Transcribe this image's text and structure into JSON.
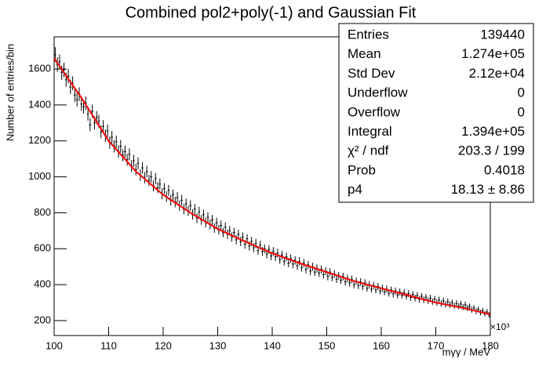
{
  "chart_data": {
    "type": "histogram",
    "title": "Combined pol2+poly(-1) and Gaussian Fit",
    "x_label": "mγγ / MeV",
    "x_multiplier": "×10³",
    "y_label": "Number of entries/bin",
    "color": "#000000",
    "bins": [
      100,
      100.4,
      100.8,
      101.2,
      101.6,
      102,
      102.4,
      102.8,
      103.2,
      103.6,
      104,
      104.4,
      104.8,
      105.2,
      105.6,
      106,
      106.4,
      106.8,
      107.2,
      107.6,
      108,
      108.4,
      108.8,
      109.2,
      109.6,
      110,
      110.4,
      110.8,
      111.2,
      111.6,
      112,
      112.4,
      112.8,
      113.2,
      113.6,
      114,
      114.4,
      114.8,
      115.2,
      115.6,
      116,
      116.4,
      116.8,
      117.2,
      117.6,
      118,
      118.4,
      118.8,
      119.2,
      119.6,
      120,
      120.4,
      120.8,
      121.2,
      121.6,
      122,
      122.4,
      122.8,
      123.2,
      123.6,
      124,
      124.4,
      124.8,
      125.2,
      125.6,
      126,
      126.4,
      126.8,
      127.2,
      127.6,
      128,
      128.4,
      128.8,
      129.2,
      129.6,
      130,
      130.4,
      130.8,
      131.2,
      131.6,
      132,
      132.4,
      132.8,
      133.2,
      133.6,
      134,
      134.4,
      134.8,
      135.2,
      135.6,
      136,
      136.4,
      136.8,
      137.2,
      137.6,
      138,
      138.4,
      138.8,
      139.2,
      139.6,
      140,
      140.4,
      140.8,
      141.2,
      141.6,
      142,
      142.4,
      142.8,
      143.2,
      143.6,
      144,
      144.4,
      144.8,
      145.2,
      145.6,
      146,
      146.4,
      146.8,
      147.2,
      147.6,
      148,
      148.4,
      148.8,
      149.2,
      149.6,
      150,
      150.4,
      150.8,
      151.2,
      151.6,
      152,
      152.4,
      152.8,
      153.2,
      153.6,
      154,
      154.4,
      154.8,
      155.2,
      155.6,
      156,
      156.4,
      156.8,
      157.2,
      157.6,
      158,
      158.4,
      158.8,
      159.2,
      159.6,
      160,
      160.4,
      160.8,
      161.2,
      161.6,
      162,
      162.4,
      162.8,
      163.2,
      163.6,
      164,
      164.4,
      164.8,
      165.2,
      165.6,
      166,
      166.4,
      166.8,
      167.2,
      167.6,
      168,
      168.4,
      168.8,
      169.2,
      169.6,
      170,
      170.4,
      170.8,
      171.2,
      171.6,
      172,
      172.4,
      172.8,
      173.2,
      173.6,
      174,
      174.4,
      174.8,
      175.2,
      175.6,
      176,
      176.4,
      176.8,
      177.2,
      177.6,
      178,
      178.4,
      178.8,
      179.2,
      179.6,
      180
    ],
    "values": [
      1680,
      1625,
      1640,
      1580,
      1595,
      1540,
      1560,
      1500,
      1520,
      1455,
      1430,
      1460,
      1405,
      1390,
      1410,
      1350,
      1290,
      1365,
      1300,
      1330,
      1310,
      1250,
      1280,
      1230,
      1255,
      1190,
      1220,
      1170,
      1195,
      1140,
      1170,
      1120,
      1140,
      1095,
      1125,
      1060,
      1090,
      1040,
      1075,
      1010,
      1050,
      995,
      1030,
      980,
      1000,
      950,
      990,
      940,
      960,
      905,
      935,
      890,
      925,
      870,
      900,
      860,
      885,
      840,
      870,
      820,
      850,
      810,
      840,
      790,
      820,
      770,
      805,
      760,
      790,
      745,
      775,
      735,
      760,
      715,
      745,
      705,
      730,
      690,
      720,
      680,
      700,
      665,
      690,
      650,
      680,
      640,
      665,
      625,
      655,
      615,
      640,
      605,
      630,
      590,
      620,
      585,
      600,
      570,
      595,
      560,
      585,
      555,
      575,
      540,
      565,
      530,
      555,
      520,
      545,
      515,
      535,
      505,
      530,
      495,
      520,
      485,
      510,
      475,
      500,
      470,
      490,
      465,
      485,
      455,
      475,
      445,
      470,
      440,
      460,
      430,
      450,
      425,
      445,
      415,
      435,
      410,
      430,
      400,
      420,
      395,
      415,
      390,
      410,
      380,
      400,
      375,
      395,
      370,
      390,
      365,
      380,
      360,
      375,
      352,
      370,
      348,
      365,
      342,
      360,
      340,
      355,
      335,
      350,
      328,
      345,
      325,
      340,
      318,
      335,
      315,
      330,
      310,
      325,
      305,
      320,
      300,
      315,
      295,
      310,
      290,
      305,
      288,
      300,
      282,
      296,
      280,
      292,
      275,
      288,
      270,
      278,
      260,
      270,
      252,
      262,
      245,
      255,
      238,
      248,
      232
    ],
    "fit": {
      "color": "#ff0000",
      "x": [
        100,
        105,
        110,
        115,
        120,
        125,
        130,
        135,
        140,
        145,
        150,
        155,
        160,
        165,
        170,
        175,
        180
      ],
      "values": [
        1660,
        1440,
        1200,
        1030,
        900,
        800,
        710,
        640,
        575,
        520,
        470,
        420,
        380,
        340,
        300,
        270,
        235
      ]
    },
    "xlim": [
      100,
      180
    ],
    "xticks": [
      100,
      110,
      120,
      130,
      140,
      150,
      160,
      170,
      180
    ],
    "ylim": [
      117,
      1779
    ],
    "yticks": [
      200,
      400,
      600,
      800,
      1000,
      1200,
      1400,
      1600
    ],
    "stats": [
      {
        "label": "Entries",
        "value": "139440"
      },
      {
        "label": "Mean",
        "value": "1.274e+05"
      },
      {
        "label": "Std Dev",
        "value": "2.12e+04"
      },
      {
        "label": "Underflow",
        "value": "0"
      },
      {
        "label": "Overflow",
        "value": "0"
      },
      {
        "label": "Integral",
        "value": "1.394e+05"
      },
      {
        "label": "χ² / ndf",
        "value": "203.3 / 199"
      },
      {
        "label": "Prob",
        "value": "0.4018"
      },
      {
        "label": "p4",
        "value": "18.13 ± 8.86"
      }
    ]
  }
}
